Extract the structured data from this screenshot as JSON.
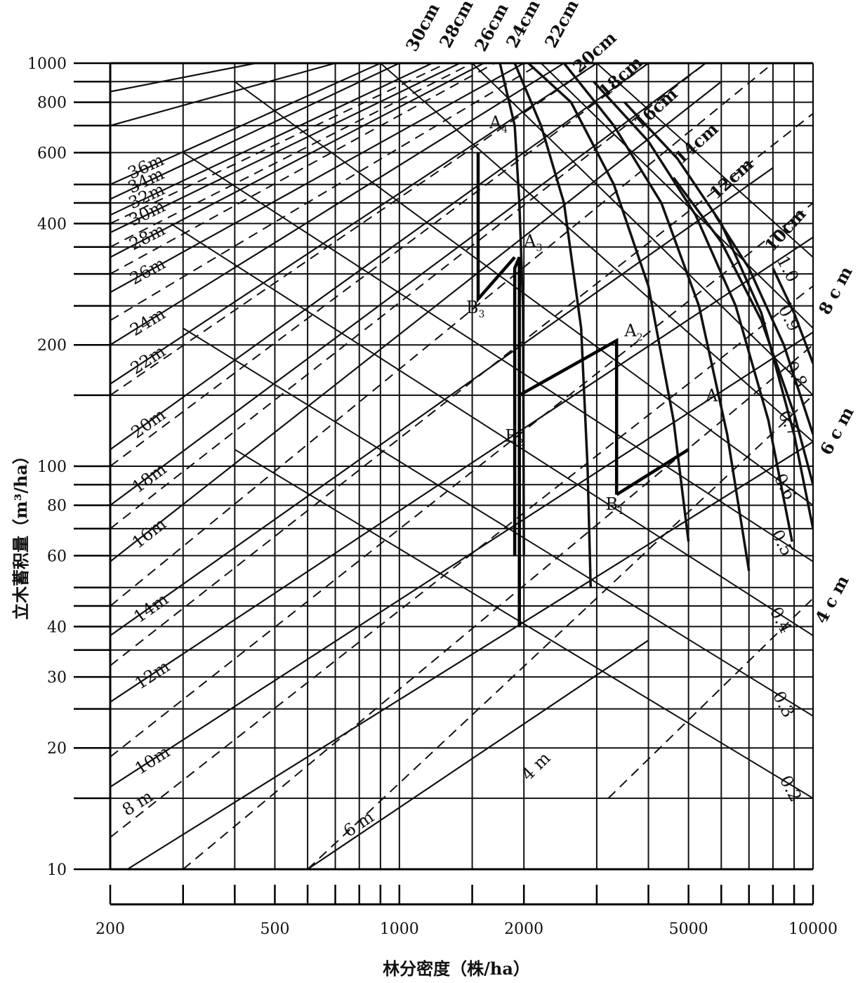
{
  "chart_data": {
    "type": "line",
    "x_scale": "log",
    "y_scale": "log",
    "xlim": [
      200,
      10000
    ],
    "ylim": [
      10,
      1000
    ],
    "xlabel": "林分密度（株/ha）",
    "ylabel": "立木蓄积量（m³/ha）",
    "x_tick_labels": [
      {
        "value": 200,
        "label": "200"
      },
      {
        "value": 500,
        "label": "500"
      },
      {
        "value": 1000,
        "label": "1000"
      },
      {
        "value": 2000,
        "label": "2000"
      },
      {
        "value": 5000,
        "label": "5000"
      },
      {
        "value": 10000,
        "label": "10000"
      }
    ],
    "y_tick_labels": [
      {
        "value": 10,
        "label": "10"
      },
      {
        "value": 20,
        "label": "20"
      },
      {
        "value": 30,
        "label": "30"
      },
      {
        "value": 40,
        "label": "40"
      },
      {
        "value": 60,
        "label": "60"
      },
      {
        "value": 80,
        "label": "80"
      },
      {
        "value": 100,
        "label": "100"
      },
      {
        "value": 200,
        "label": "200"
      },
      {
        "value": 400,
        "label": "400"
      },
      {
        "value": 600,
        "label": "600"
      },
      {
        "value": 800,
        "label": "800"
      },
      {
        "value": 1000,
        "label": "1000"
      }
    ],
    "y_grid_values": [
      10,
      15,
      20,
      25,
      30,
      35,
      40,
      45,
      50,
      60,
      70,
      80,
      90,
      100,
      150,
      200,
      250,
      300,
      350,
      400,
      450,
      500,
      600,
      700,
      800,
      900,
      1000
    ],
    "x_grid_values": [
      200,
      300,
      400,
      500,
      600,
      700,
      800,
      900,
      1000,
      1500,
      2000,
      3000,
      4000,
      5000,
      6000,
      7000,
      8000,
      9000,
      10000
    ],
    "height_lines": {
      "line_style": "solid",
      "series": [
        {
          "name": "6 m",
          "points": [
            [
              600,
              10
            ],
            [
              4000,
              37
            ]
          ]
        },
        {
          "name": "8 m",
          "points": [
            [
              220,
              10
            ],
            [
              10000,
              115
            ]
          ]
        },
        {
          "name": "10m",
          "points": [
            [
              200,
              16
            ],
            [
              10000,
              215
            ]
          ]
        },
        {
          "name": "12m",
          "points": [
            [
              200,
              26
            ],
            [
              10000,
              370
            ]
          ]
        },
        {
          "name": "14m",
          "points": [
            [
              200,
              38
            ],
            [
              8000,
              550
            ]
          ]
        },
        {
          "name": "16m",
          "points": [
            [
              200,
              58
            ],
            [
              6000,
              900
            ]
          ]
        },
        {
          "name": "18m",
          "points": [
            [
              200,
              80
            ],
            [
              5500,
              1000
            ]
          ]
        },
        {
          "name": "20m",
          "points": [
            [
              200,
              110
            ],
            [
              4000,
              1000
            ]
          ]
        },
        {
          "name": "22m",
          "points": [
            [
              200,
              160
            ],
            [
              3000,
              1000
            ]
          ]
        },
        {
          "name": "24m",
          "points": [
            [
              200,
              200
            ],
            [
              2500,
              1000
            ]
          ]
        },
        {
          "name": "26m",
          "points": [
            [
              200,
              270
            ],
            [
              2000,
              1000
            ]
          ]
        },
        {
          "name": "28m",
          "points": [
            [
              200,
              330
            ],
            [
              1600,
              1000
            ]
          ]
        },
        {
          "name": "30m",
          "points": [
            [
              200,
              380
            ],
            [
              1400,
              1000
            ]
          ]
        },
        {
          "name": "32m",
          "points": [
            [
              200,
              420
            ],
            [
              1200,
              1000
            ]
          ]
        },
        {
          "name": "34m",
          "points": [
            [
              200,
              460
            ],
            [
              1000,
              1000
            ]
          ]
        },
        {
          "name": "36m",
          "points": [
            [
              200,
              500
            ],
            [
              900,
              1000
            ]
          ]
        }
      ],
      "extra_unlabeled": [
        {
          "points": [
            [
              200,
              700
            ],
            [
              700,
              1000
            ]
          ]
        },
        {
          "points": [
            [
              200,
              850
            ],
            [
              450,
              1000
            ]
          ]
        }
      ]
    },
    "height_lines_dashed": {
      "line_style": "dashed",
      "series": [
        {
          "name": "4 m",
          "points": [
            [
              3200,
              15
            ],
            [
              10000,
              47
            ]
          ]
        },
        {
          "points": [
            [
              600,
              10
            ],
            [
              10000,
              150
            ]
          ]
        },
        {
          "points": [
            [
              300,
              10
            ],
            [
              10000,
              200
            ]
          ]
        },
        {
          "points": [
            [
              200,
              12
            ],
            [
              10000,
              280
            ]
          ]
        },
        {
          "points": [
            [
              200,
              19
            ],
            [
              10000,
              450
            ]
          ]
        },
        {
          "points": [
            [
              200,
              32
            ],
            [
              10000,
              750
            ]
          ]
        },
        {
          "points": [
            [
              200,
              45
            ],
            [
              8000,
              1000
            ]
          ]
        },
        {
          "points": [
            [
              200,
              70
            ],
            [
              5500,
              1000
            ]
          ]
        },
        {
          "points": [
            [
              200,
              100
            ],
            [
              4000,
              1000
            ]
          ]
        },
        {
          "points": [
            [
              200,
              150
            ],
            [
              3000,
              1000
            ]
          ]
        },
        {
          "points": [
            [
              200,
              230
            ],
            [
              2200,
              1000
            ]
          ]
        },
        {
          "points": [
            [
              200,
              300
            ],
            [
              1700,
              1000
            ]
          ]
        },
        {
          "points": [
            [
              200,
              350
            ],
            [
              1500,
              1000
            ]
          ]
        },
        {
          "points": [
            [
              200,
              400
            ],
            [
              1300,
              1000
            ]
          ]
        }
      ]
    },
    "density_index_lines": {
      "series": [
        {
          "name": "0.2",
          "points": [
            [
              400,
              110
            ],
            [
              10000,
              15
            ]
          ]
        },
        {
          "name": "0.3",
          "points": [
            [
              300,
              220
            ],
            [
              10000,
              24
            ]
          ]
        },
        {
          "name": "0.4",
          "points": [
            [
              280,
              400
            ],
            [
              10000,
              38
            ]
          ]
        },
        {
          "name": "0.5",
          "points": [
            [
              300,
              600
            ],
            [
              10000,
              58
            ]
          ]
        },
        {
          "name": "0.6",
          "points": [
            [
              400,
              900
            ],
            [
              10000,
              80
            ]
          ]
        },
        {
          "name": "0.7",
          "points": [
            [
              900,
              1000
            ],
            [
              10000,
              115
            ]
          ]
        },
        {
          "name": "0.8",
          "points": [
            [
              1500,
              1000
            ],
            [
              10000,
              150
            ]
          ]
        },
        {
          "name": "0.9",
          "points": [
            [
              2200,
              1000
            ],
            [
              10000,
              220
            ]
          ]
        },
        {
          "name": "1.0",
          "points": [
            [
              3000,
              1000
            ],
            [
              10000,
              330
            ]
          ]
        }
      ]
    },
    "diameter_curves": {
      "series": [
        {
          "name": "30cm",
          "points": [
            [
              1500,
              1000
            ]
          ]
        },
        {
          "name": "28cm",
          "points": [
            [
              1650,
              1000
            ]
          ]
        },
        {
          "name": "26cm",
          "points": [
            [
              1750,
              1000
            ],
            [
              1900,
              700
            ],
            [
              1950,
              450
            ],
            [
              1990,
              250
            ],
            [
              2000,
              60
            ]
          ]
        },
        {
          "name": "24cm",
          "points": [
            [
              1900,
              1000
            ],
            [
              2200,
              700
            ],
            [
              2500,
              450
            ],
            [
              2750,
              220
            ],
            [
              2850,
              100
            ],
            [
              2900,
              50
            ]
          ]
        },
        {
          "name": "22cm",
          "points": [
            [
              2050,
              1000
            ],
            [
              2600,
              800
            ],
            [
              3300,
              500
            ],
            [
              4000,
              280
            ],
            [
              4600,
              130
            ],
            [
              5000,
              65
            ]
          ]
        },
        {
          "name": "20cm",
          "points": [
            [
              2500,
              1000
            ],
            [
              3300,
              700
            ],
            [
              4300,
              450
            ],
            [
              5300,
              250
            ],
            [
              6200,
              120
            ],
            [
              7000,
              55
            ]
          ]
        },
        {
          "name": "18cm",
          "points": [
            [
              2950,
              900
            ],
            [
              4000,
              640
            ],
            [
              5200,
              420
            ],
            [
              6500,
              250
            ],
            [
              7800,
              130
            ],
            [
              8900,
              65
            ]
          ]
        },
        {
          "name": "16cm",
          "points": [
            [
              3500,
              800
            ],
            [
              4700,
              580
            ],
            [
              6000,
              400
            ],
            [
              7500,
              240
            ],
            [
              9000,
              120
            ],
            [
              10000,
              70
            ]
          ]
        },
        {
          "name": "14cm",
          "points": [
            [
              4600,
              520
            ],
            [
              6000,
              360
            ],
            [
              7500,
              230
            ],
            [
              9000,
              135
            ],
            [
              10000,
              90
            ]
          ]
        },
        {
          "name": "12cm",
          "points": [
            [
              5800,
              420
            ],
            [
              7000,
              310
            ],
            [
              8500,
              200
            ],
            [
              10000,
              120
            ]
          ]
        },
        {
          "name": "10cm",
          "points": [
            [
              8000,
              310
            ],
            [
              9000,
              240
            ],
            [
              10000,
              180
            ]
          ]
        },
        {
          "name": "8 c m",
          "points": []
        },
        {
          "name": "6 c m",
          "points": []
        },
        {
          "name": "4 c m",
          "points": []
        }
      ]
    },
    "thinning_paths": [
      {
        "name": "path-1",
        "points": [
          [
            1900,
            60
          ],
          [
            1900,
            310
          ],
          [
            1950,
            330
          ],
          [
            1950,
            40
          ]
        ],
        "labels": []
      },
      {
        "name": "path-2",
        "points": [
          [
            1950,
            150
          ],
          [
            3350,
            205
          ],
          [
            3350,
            85
          ]
        ],
        "labels": []
      },
      {
        "name": "path-3",
        "points": [
          [
            1550,
            600
          ],
          [
            1550,
            260
          ],
          [
            1900,
            330
          ]
        ],
        "labels": []
      },
      {
        "name": "path-4",
        "points": [
          [
            3350,
            85
          ],
          [
            5000,
            110
          ]
        ],
        "labels": []
      }
    ],
    "point_labels": [
      {
        "text": "A₄",
        "main": "A",
        "sub": "4",
        "x": 1650,
        "y": 690
      },
      {
        "text": "A₃",
        "main": "A",
        "sub": "3",
        "x": 2000,
        "y": 350
      },
      {
        "text": "B₃",
        "main": "B",
        "sub": "3",
        "x": 1450,
        "y": 240
      },
      {
        "text": "A₂",
        "main": "A",
        "sub": "2",
        "x": 3500,
        "y": 210
      },
      {
        "text": "B₂",
        "main": "B",
        "sub": "2",
        "x": 1800,
        "y": 115
      },
      {
        "text": "A₁",
        "main": "A",
        "sub": "1",
        "x": 5500,
        "y": 145
      },
      {
        "text": "B₁",
        "main": "B",
        "sub": "1",
        "x": 3150,
        "y": 78
      }
    ]
  }
}
